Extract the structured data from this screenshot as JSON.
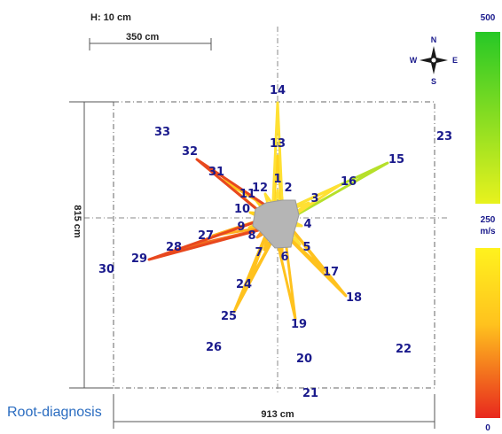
{
  "header": {
    "height_label": "H: 10 cm",
    "scale_bar_label": "350 cm"
  },
  "dimensions": {
    "width_label": "913 cm",
    "depth_label": "815 cm"
  },
  "compass": {
    "north": "N",
    "south": "S",
    "east": "E",
    "west": "W"
  },
  "velocity_scale": {
    "top": "500",
    "middle": "250",
    "unit": "m/s",
    "bottom": "0"
  },
  "caption": "Root-diagnosis",
  "colors": {
    "label": "#1a1a8c",
    "trunk": "#b5b5b5",
    "low": "#e8281e",
    "mid": "#ffd21e",
    "high": "#26c826",
    "caption": "#2a6cc0"
  },
  "sensors": [
    {
      "id": "1",
      "color": "#ffe033"
    },
    {
      "id": "2",
      "color": "#ffe033"
    },
    {
      "id": "3",
      "color": "#ffe033"
    },
    {
      "id": "4",
      "color": "#ffe033"
    },
    {
      "id": "5",
      "color": "#ffe033"
    },
    {
      "id": "6",
      "color": "#ffc21e"
    },
    {
      "id": "7",
      "color": "#ffc21e"
    },
    {
      "id": "8",
      "color": "#ff9b1e"
    },
    {
      "id": "9",
      "color": "#ffd21e"
    },
    {
      "id": "10",
      "color": "#ffd21e"
    },
    {
      "id": "11",
      "color": "#ffd21e"
    },
    {
      "id": "12",
      "color": "#ffe033"
    },
    {
      "id": "13",
      "color": "#ffd21e"
    },
    {
      "id": "14",
      "color": "#ffe033"
    },
    {
      "id": "15",
      "color": "#b6e02a"
    },
    {
      "id": "16",
      "color": "#ffe033"
    },
    {
      "id": "17",
      "color": "#ffc21e"
    },
    {
      "id": "18",
      "color": "#ffc21e"
    },
    {
      "id": "19",
      "color": "#ffc21e"
    },
    {
      "id": "24",
      "color": "#ffc21e"
    },
    {
      "id": "25",
      "color": "#ffc21e"
    },
    {
      "id": "27",
      "color": "#ffb01e"
    },
    {
      "id": "28",
      "color": "#f26a1e"
    },
    {
      "id": "29",
      "color": "#e8481e"
    },
    {
      "id": "31",
      "color": "#ffc21e"
    },
    {
      "id": "32",
      "color": "#e8481e"
    },
    {
      "id": "20",
      "color": ""
    },
    {
      "id": "21",
      "color": ""
    },
    {
      "id": "22",
      "color": ""
    },
    {
      "id": "23",
      "color": ""
    },
    {
      "id": "26",
      "color": ""
    },
    {
      "id": "30",
      "color": ""
    },
    {
      "id": "33",
      "color": ""
    }
  ]
}
